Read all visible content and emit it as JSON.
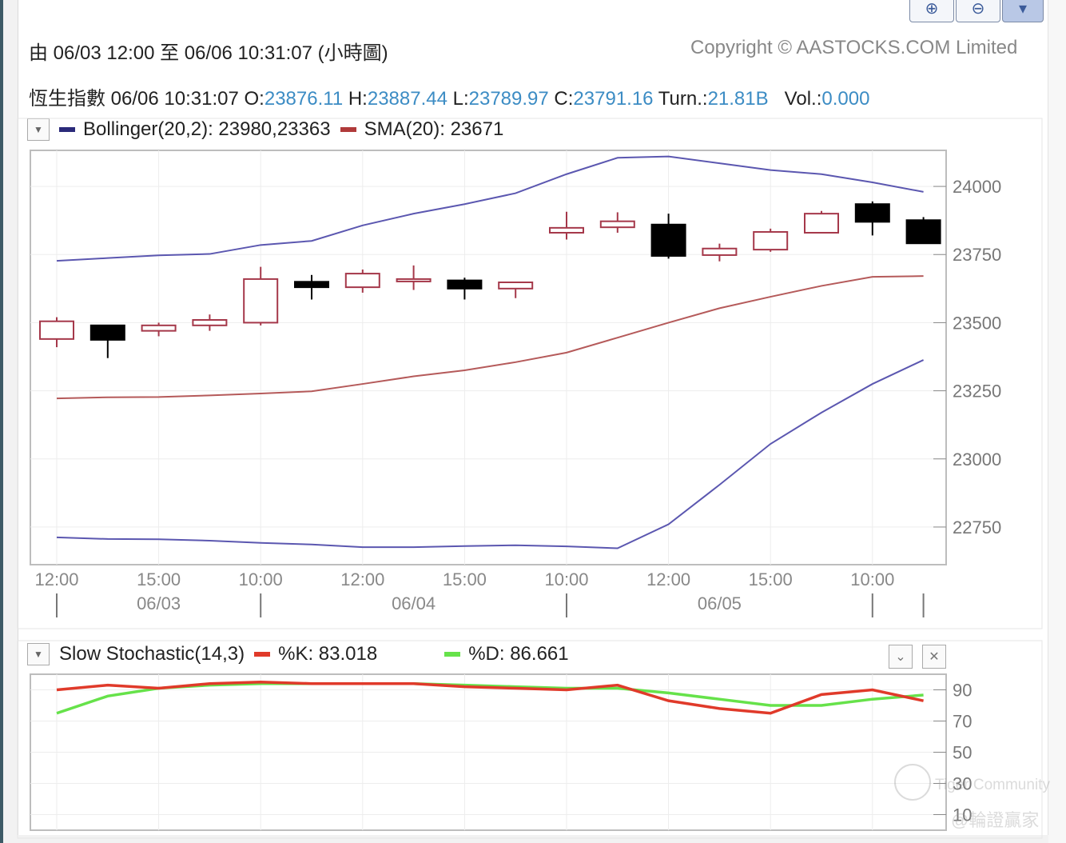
{
  "header": {
    "range_text": "由  06/03 12:00 至  06/06 10:31:07 (小時圖)",
    "copyright": "Copyright © AASTOCKS.COM Limited"
  },
  "quote": {
    "name": "恆生指數",
    "datetime": "06/06 10:31:07",
    "open_label": "O:",
    "open": "23876.11",
    "high_label": "H:",
    "high": "23887.44",
    "low_label": "L:",
    "low": "23789.97",
    "close_label": "C:",
    "close": "23791.16",
    "turn_label": "Turn.:",
    "turn": "21.81B",
    "vol_label": "Vol.:",
    "vol": "0.000"
  },
  "legend_main": {
    "bollinger": "Bollinger(20,2): 23980,23363",
    "sma": "SMA(20): 23671",
    "bollinger_color": "#2b2a7a",
    "sma_color": "#b03a3a"
  },
  "legend_stoch": {
    "title": "Slow Stochastic(14,3)",
    "k": "%K: 83.018",
    "d": "%D: 86.661",
    "k_color": "#e03a2a",
    "d_color": "#66e24a"
  },
  "watermark": "AASTOCKS",
  "footer_watermark": {
    "line1": "Tiger Community",
    "line2": "@輪證贏家"
  },
  "chart_data": [
    {
      "type": "candlestick",
      "ylim": [
        22650,
        24100
      ],
      "yticks": [
        24000,
        23750,
        23500,
        23250,
        23000,
        22750
      ],
      "x_time_labels": [
        "12:00",
        "15:00",
        "10:00",
        "12:00",
        "15:00",
        "10:00",
        "12:00",
        "15:00",
        "10:00"
      ],
      "x_time_index": [
        0,
        2,
        4,
        6,
        8,
        10,
        12,
        14,
        16
      ],
      "x_date_labels": [
        "06/03",
        "06/04",
        "06/05"
      ],
      "x_date_index": [
        2,
        7,
        13
      ],
      "day_separators": [
        0,
        4,
        10,
        16,
        17
      ],
      "candles": [
        {
          "o": 23440,
          "h": 23520,
          "l": 23410,
          "c": 23505
        },
        {
          "o": 23490,
          "h": 23490,
          "l": 23370,
          "c": 23437
        },
        {
          "o": 23470,
          "h": 23500,
          "l": 23450,
          "c": 23490
        },
        {
          "o": 23490,
          "h": 23530,
          "l": 23470,
          "c": 23510
        },
        {
          "o": 23500,
          "h": 23705,
          "l": 23490,
          "c": 23660
        },
        {
          "o": 23650,
          "h": 23675,
          "l": 23585,
          "c": 23630
        },
        {
          "o": 23630,
          "h": 23695,
          "l": 23610,
          "c": 23680
        },
        {
          "o": 23660,
          "h": 23710,
          "l": 23620,
          "c": 23660
        },
        {
          "o": 23655,
          "h": 23665,
          "l": 23585,
          "c": 23625
        },
        {
          "o": 23625,
          "h": 23650,
          "l": 23590,
          "c": 23648
        },
        {
          "o": 23830,
          "h": 23907,
          "l": 23805,
          "c": 23848
        },
        {
          "o": 23850,
          "h": 23905,
          "l": 23830,
          "c": 23872
        },
        {
          "o": 23860,
          "h": 23900,
          "l": 23735,
          "c": 23745
        },
        {
          "o": 23748,
          "h": 23790,
          "l": 23725,
          "c": 23772
        },
        {
          "o": 23768,
          "h": 23845,
          "l": 23760,
          "c": 23833
        },
        {
          "o": 23830,
          "h": 23910,
          "l": 23830,
          "c": 23900
        },
        {
          "o": 23935,
          "h": 23945,
          "l": 23820,
          "c": 23870
        },
        {
          "o": 23876.11,
          "h": 23887.44,
          "l": 23789.97,
          "c": 23791.16
        }
      ],
      "series": [
        {
          "name": "Bollinger upper",
          "values": [
            23727,
            23737,
            23747,
            23752,
            23785,
            23800,
            23857,
            23900,
            23935,
            23975,
            24045,
            24105,
            24110,
            24085,
            24060,
            24045,
            24015,
            23980
          ]
        },
        {
          "name": "SMA(20)",
          "values": [
            23222,
            23226,
            23227,
            23233,
            23240,
            23248,
            23275,
            23303,
            23325,
            23355,
            23390,
            23445,
            23500,
            23553,
            23595,
            23635,
            23668,
            23671
          ]
        },
        {
          "name": "Bollinger lower",
          "values": [
            22712,
            22706,
            22705,
            22700,
            22692,
            22686,
            22676,
            22676,
            22680,
            22683,
            22679,
            22672,
            22760,
            22905,
            23055,
            23170,
            23275,
            23363
          ]
        }
      ]
    },
    {
      "type": "line",
      "ylim": [
        0,
        100
      ],
      "yticks": [
        90,
        70,
        50,
        30,
        10
      ],
      "series": [
        {
          "name": "%K",
          "values": [
            90,
            93,
            91,
            94,
            95,
            94,
            94,
            94,
            92,
            91,
            90,
            93,
            83,
            78,
            75,
            87,
            90,
            83
          ]
        },
        {
          "name": "%D",
          "values": [
            75,
            86,
            91,
            93,
            94,
            94,
            94,
            94,
            93,
            92,
            91,
            91,
            88,
            84,
            80,
            80,
            84,
            86.661
          ]
        }
      ]
    }
  ]
}
